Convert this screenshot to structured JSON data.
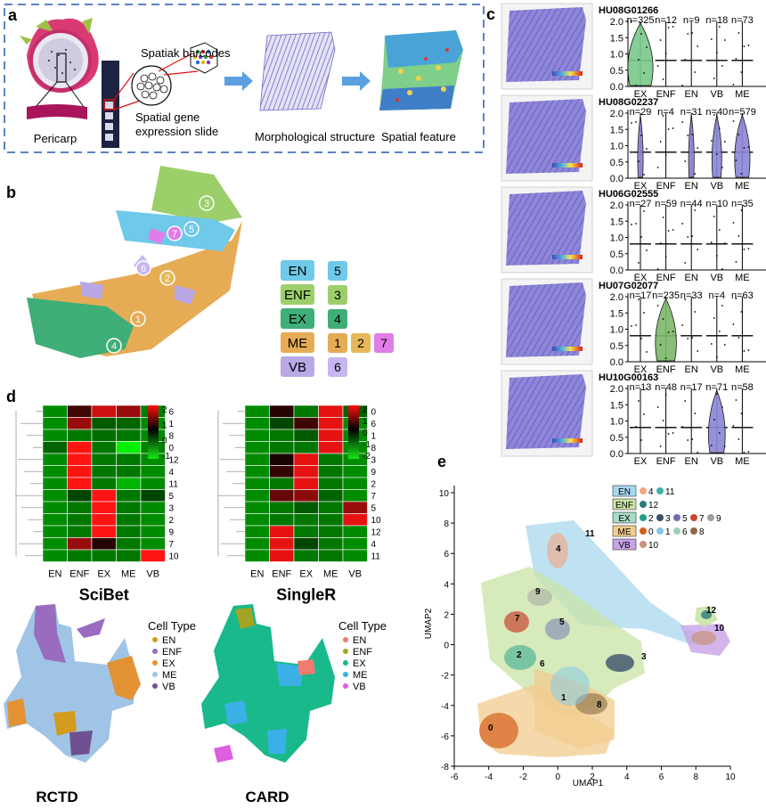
{
  "panel_a": {
    "letter": "a",
    "labels": {
      "barcodes": "Spatiak barcodes",
      "slide_1": "Spatial gene",
      "slide_2": "expression slide",
      "pericarp": "Pericarp",
      "morph": "Morphological structure",
      "spatial": "Spatial feature"
    }
  },
  "panel_b": {
    "letter": "b",
    "cluster_numbers": [
      "1",
      "2",
      "3",
      "4",
      "5",
      "6",
      "7"
    ],
    "legend": [
      {
        "type": "EN",
        "color": "#6fc9e8",
        "clusters": [
          "5"
        ]
      },
      {
        "type": "ENF",
        "color": "#9ccf6a",
        "clusters": [
          "3"
        ]
      },
      {
        "type": "EX",
        "color": "#3fae78",
        "clusters": [
          "4"
        ]
      },
      {
        "type": "ME",
        "color": "#e6ac55",
        "clusters": [
          "1",
          "2",
          "7"
        ]
      },
      {
        "type": "VB",
        "color": "#b9a8e6",
        "clusters": [
          "6"
        ]
      }
    ],
    "cluster_colors": {
      "1": "#e6ac55",
      "2": "#e6b85a",
      "3": "#9ccf6a",
      "4": "#3fae78",
      "5": "#6fc9e8",
      "6": "#c7b6ef",
      "7": "#e07de8"
    }
  },
  "panel_c": {
    "letter": "c",
    "categories": [
      "EX",
      "ENF",
      "EN",
      "VB",
      "ME"
    ],
    "yticks": [
      "0.0",
      "0.5",
      "1.0",
      "1.5",
      "2.0"
    ],
    "genes": [
      {
        "name": "HU08G01266",
        "counts": [
          "n=325",
          "n=12",
          "n=9",
          "n=18",
          "n=73"
        ],
        "violin_widths": [
          0.9,
          0.1,
          0.1,
          0.15,
          0.15
        ],
        "violin_color": "#7ac98a",
        "thumb_hint": "HU08G01266"
      },
      {
        "name": "HU08G02237",
        "counts": [
          "n=29",
          "n=4",
          "n=31",
          "n=40",
          "n=579"
        ],
        "violin_widths": [
          0.2,
          0.1,
          0.2,
          0.35,
          0.55
        ],
        "violin_color": "#8a86d6",
        "thumb_hint": "HU08G02237"
      },
      {
        "name": "HU06G02555",
        "counts": [
          "n=27",
          "n=59",
          "n=44",
          "n=10",
          "n=35"
        ],
        "violin_widths": [
          0.1,
          0.1,
          0.1,
          0.1,
          0.1
        ],
        "violin_color": "#8a86d6",
        "thumb_hint": "HU06G02555"
      },
      {
        "name": "HU07G02077",
        "counts": [
          "n=17",
          "n=235",
          "n=33",
          "n=4",
          "n=63"
        ],
        "violin_widths": [
          0.15,
          0.75,
          0.15,
          0.1,
          0.15
        ],
        "violin_color": "#7db86a",
        "thumb_hint": "HU07G02077"
      },
      {
        "name": "HU10G00163",
        "counts": [
          "n=13",
          "n=48",
          "n=17",
          "n=71",
          "n=58"
        ],
        "violin_widths": [
          0.1,
          0.15,
          0.1,
          0.6,
          0.1
        ],
        "violin_color": "#8a86d6",
        "thumb_hint": "HU10G00163"
      }
    ]
  },
  "panel_d": {
    "letter": "d",
    "heatmaps": [
      {
        "title": "SciBet",
        "columns": [
          "EN",
          "ENF",
          "EX",
          "ME",
          "VB"
        ],
        "rows": [
          "6",
          "1",
          "8",
          "0",
          "12",
          "4",
          "11",
          "5",
          "3",
          "2",
          "9",
          "7",
          "10"
        ],
        "values": [
          [
            -1,
            0.5,
            1.6,
            1.2,
            -0.9
          ],
          [
            -1,
            1.2,
            -0.5,
            -0.6,
            -1
          ],
          [
            -1,
            -0.8,
            -0.7,
            -0.8,
            -1
          ],
          [
            -0.6,
            2,
            -0.8,
            -2,
            -0.9
          ],
          [
            -1,
            2,
            -0.8,
            -0.8,
            -1
          ],
          [
            -1,
            2,
            -0.8,
            -0.8,
            -1
          ],
          [
            -1,
            2,
            -0.8,
            -1.4,
            -1
          ],
          [
            -1,
            -0.3,
            2,
            -0.8,
            -0.3
          ],
          [
            -1,
            -0.8,
            2,
            -0.8,
            -1
          ],
          [
            -1,
            -0.8,
            2,
            -0.8,
            -1
          ],
          [
            -1,
            -0.8,
            2,
            -0.8,
            -1
          ],
          [
            -1,
            1.2,
            0.3,
            -0.8,
            -1
          ],
          [
            -1,
            -0.8,
            -0.8,
            -0.8,
            2
          ]
        ],
        "colorbar_ticks": [
          "2",
          "1",
          "0",
          "-1"
        ]
      },
      {
        "title": "SingleR",
        "columns": [
          "EN",
          "ENF",
          "EX",
          "ME",
          "VB"
        ],
        "rows": [
          "0",
          "6",
          "1",
          "8",
          "3",
          "9",
          "2",
          "7",
          "5",
          "10",
          "12",
          "4",
          "11"
        ],
        "values": [
          [
            -1,
            0.3,
            -0.8,
            1.8,
            -0.6
          ],
          [
            -1,
            -0.3,
            0.5,
            1.8,
            -1
          ],
          [
            -1,
            -0.8,
            -0.5,
            1.8,
            -1
          ],
          [
            -1,
            -0.8,
            -0.8,
            1.8,
            -1
          ],
          [
            -1,
            0.2,
            1.8,
            -0.8,
            -1
          ],
          [
            -1,
            0.4,
            1.8,
            -0.8,
            -1
          ],
          [
            -1,
            -0.8,
            1.8,
            -0.8,
            -1
          ],
          [
            -1,
            0.8,
            1.1,
            -0.6,
            -1
          ],
          [
            -1,
            -0.8,
            -0.5,
            -0.8,
            1.2
          ],
          [
            -1,
            -0.8,
            -0.8,
            -0.8,
            1.8
          ],
          [
            -1,
            1.8,
            -0.8,
            -0.8,
            -1
          ],
          [
            -1,
            1.8,
            -0.3,
            -0.8,
            -1
          ],
          [
            -1,
            1.8,
            -0.8,
            -0.8,
            -1
          ]
        ],
        "colorbar_ticks": [
          "2",
          "1",
          "0",
          "-1",
          "-2"
        ]
      }
    ],
    "rctd": {
      "title": "RCTD",
      "legend_title": "Cell Type",
      "legend": [
        {
          "label": "EN",
          "color": "#d39b1f"
        },
        {
          "label": "ENF",
          "color": "#9a6cbf"
        },
        {
          "label": "EX",
          "color": "#e39233"
        },
        {
          "label": "ME",
          "color": "#9fc4e6"
        },
        {
          "label": "VB",
          "color": "#6f5090"
        }
      ]
    },
    "card": {
      "title": "CARD",
      "legend_title": "Cell Type",
      "legend": [
        {
          "label": "EN",
          "color": "#f07b6e"
        },
        {
          "label": "ENF",
          "color": "#a3a522"
        },
        {
          "label": "EX",
          "color": "#19b98c"
        },
        {
          "label": "ME",
          "color": "#3bb0e6"
        },
        {
          "label": "VB",
          "color": "#e05ee0"
        }
      ]
    }
  },
  "panel_e": {
    "letter": "e",
    "xlabel": "UMAP1",
    "ylabel": "UMAP2",
    "xticks": [
      "-6",
      "-4",
      "-2",
      "0",
      "2",
      "4",
      "6",
      "8",
      "10"
    ],
    "yticks": [
      "10",
      "8",
      "6",
      "4",
      "2",
      "0",
      "-2",
      "-4",
      "-6",
      "-8"
    ],
    "cluster_labels": [
      "0",
      "1",
      "2",
      "3",
      "4",
      "5",
      "6",
      "7",
      "8",
      "9",
      "10",
      "11",
      "12"
    ],
    "legend": [
      {
        "type": "EN",
        "box": "#a8d8ee",
        "items": [
          {
            "n": "4",
            "c": "#f4a582"
          },
          {
            "n": "11",
            "c": "#3ab5a8"
          }
        ]
      },
      {
        "type": "ENF",
        "box": "#c9e3a6",
        "items": [
          {
            "n": "12",
            "c": "#2b7d7a"
          }
        ]
      },
      {
        "type": "EX",
        "box": "#a7dcc6",
        "items": [
          {
            "n": "2",
            "c": "#1f9e89"
          },
          {
            "n": "3",
            "c": "#3a506b"
          },
          {
            "n": "5",
            "c": "#6d6fb2"
          },
          {
            "n": "7",
            "c": "#c94630"
          },
          {
            "n": "9",
            "c": "#a0a0a0"
          }
        ]
      },
      {
        "type": "ME",
        "box": "#f2cc8f",
        "items": [
          {
            "n": "0",
            "c": "#d55e1b"
          },
          {
            "n": "1",
            "c": "#7fc7e8"
          },
          {
            "n": "6",
            "c": "#9ed1b8"
          },
          {
            "n": "8",
            "c": "#8b6a45"
          }
        ]
      },
      {
        "type": "VB",
        "box": "#c9a3e6",
        "items": [
          {
            "n": "10",
            "c": "#c7937a"
          }
        ]
      }
    ]
  }
}
